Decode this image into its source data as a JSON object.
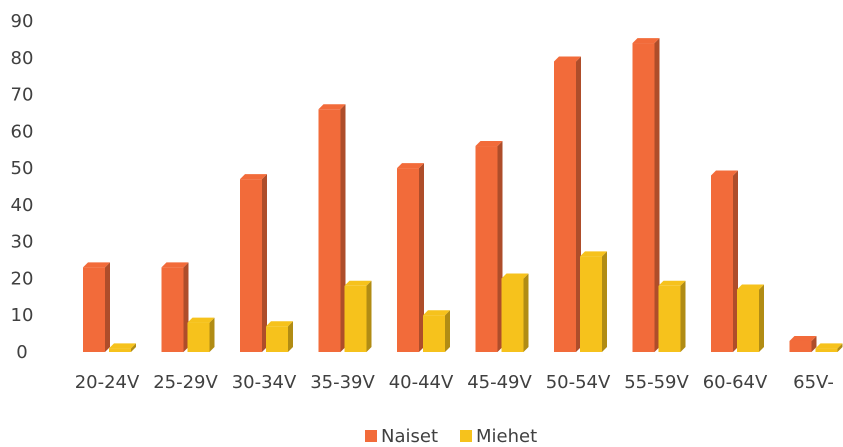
{
  "chart_data": {
    "type": "bar",
    "title": "",
    "xlabel": "",
    "ylabel": "",
    "ylim": [
      0,
      90
    ],
    "yticks": [
      "0",
      "10",
      "20",
      "30",
      "40",
      "50",
      "60",
      "70",
      "80",
      "90"
    ],
    "categories": [
      "20-24V",
      "25-29V",
      "30-34V",
      "35-39V",
      "40-44V",
      "45-49V",
      "50-54V",
      "55-59V",
      "60-64V",
      "65V-"
    ],
    "series": [
      {
        "name": "Naiset",
        "color": "#f26b3a",
        "values": [
          23,
          23,
          47,
          66,
          50,
          56,
          79,
          84,
          48,
          3
        ]
      },
      {
        "name": "Miehet",
        "color": "#f6c21c",
        "values": [
          1,
          8,
          7,
          18,
          10,
          20,
          26,
          18,
          17,
          1
        ]
      }
    ],
    "legend": "bottom",
    "grid": false
  }
}
